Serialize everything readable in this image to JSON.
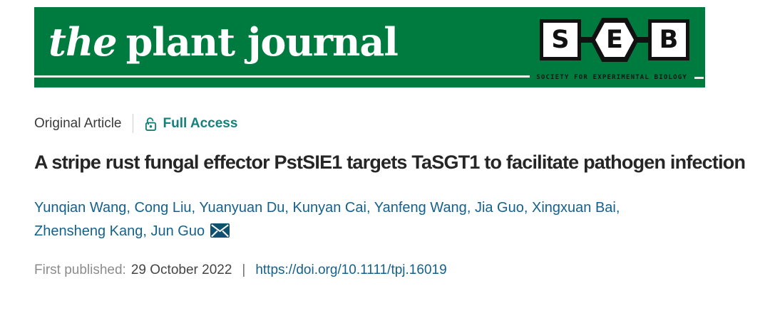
{
  "banner": {
    "background_color": "#007B40",
    "wordmark": {
      "the": "the",
      "rest": "plant journal"
    },
    "seb": {
      "letters": [
        "S",
        "E",
        "B"
      ],
      "society_line": "SOCIETY FOR EXPERIMENTAL BIOLOGY"
    }
  },
  "meta": {
    "article_type": "Original Article",
    "access_label": "Full Access",
    "access_color": "#12827A"
  },
  "title": "A stripe rust fungal effector PstSIE1 targets TaSGT1 to facilitate pathogen infection",
  "authors": [
    "Yunqian Wang",
    "Cong Liu",
    "Yuanyuan Du",
    "Kunyan Cai",
    "Yanfeng Wang",
    "Jia Guo",
    "Xingxuan Bai",
    "Zhensheng Kang",
    "Jun Guo"
  ],
  "publication": {
    "first_published_label": "First published:",
    "date": "29 October 2022",
    "doi": "https://doi.org/10.1111/tpj.16019",
    "link_color": "#14618D"
  }
}
